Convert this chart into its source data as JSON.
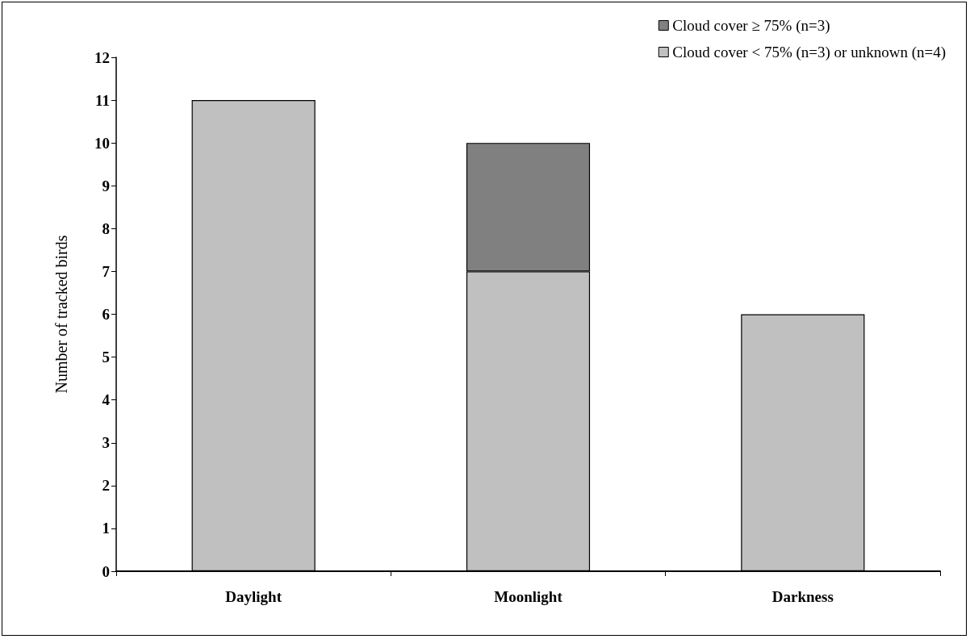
{
  "chart_data": {
    "type": "bar",
    "stacked": true,
    "ylabel": "Number of tracked birds",
    "categories": [
      "Daylight",
      "Moonlight",
      "Darkness"
    ],
    "series": [
      {
        "name": "Cloud cover < 75% (n=3) or unknown (n=4)",
        "color": "#c0c0c0",
        "values": [
          11,
          7,
          6
        ]
      },
      {
        "name": "Cloud cover ≥ 75% (n=3)",
        "color": "#808080",
        "values": [
          null,
          3,
          null
        ]
      }
    ],
    "ylim": [
      0,
      12
    ],
    "yticks": [
      0,
      1,
      2,
      3,
      4,
      5,
      6,
      7,
      8,
      9,
      10,
      11,
      12
    ],
    "grid": false,
    "legend": "top right"
  }
}
